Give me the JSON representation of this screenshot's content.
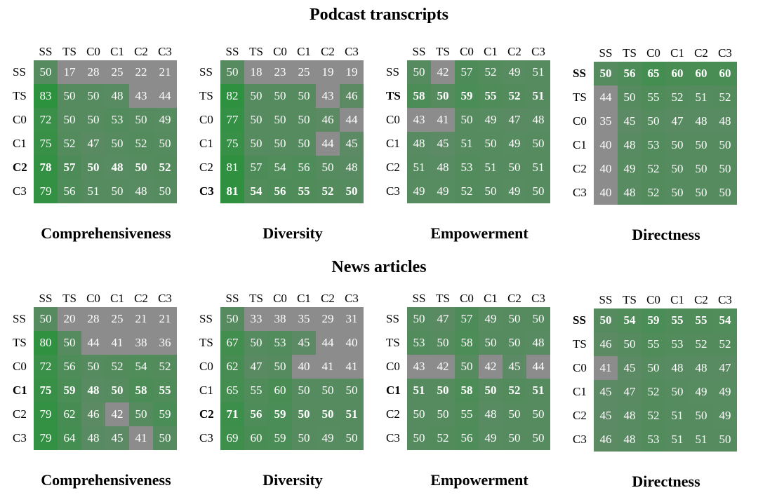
{
  "sections": [
    {
      "title": "Podcast transcripts"
    },
    {
      "title": "News articles"
    }
  ],
  "colors": {
    "gray": "#8c8c8c",
    "green_mid": "#4f8a5c",
    "green_strong": "#2e8a3e",
    "text": "#ffffff"
  },
  "chart_data": [
    {
      "type": "heatmap",
      "section": "Podcast transcripts",
      "title": "Comprehensiveness",
      "x_categories": [
        "SS",
        "TS",
        "C0",
        "C1",
        "C2",
        "C3"
      ],
      "y_categories": [
        "SS",
        "TS",
        "C0",
        "C1",
        "C2",
        "C3"
      ],
      "highlight_row": "C2",
      "values": [
        [
          50,
          17,
          28,
          25,
          22,
          21
        ],
        [
          83,
          50,
          50,
          48,
          43,
          44
        ],
        [
          72,
          50,
          50,
          53,
          50,
          49
        ],
        [
          75,
          52,
          47,
          50,
          52,
          50
        ],
        [
          78,
          57,
          50,
          48,
          50,
          52
        ],
        [
          79,
          56,
          51,
          50,
          48,
          50
        ]
      ]
    },
    {
      "type": "heatmap",
      "section": "Podcast transcripts",
      "title": "Diversity",
      "x_categories": [
        "SS",
        "TS",
        "C0",
        "C1",
        "C2",
        "C3"
      ],
      "y_categories": [
        "SS",
        "TS",
        "C0",
        "C1",
        "C2",
        "C3"
      ],
      "highlight_row": "C3",
      "values": [
        [
          50,
          18,
          23,
          25,
          19,
          19
        ],
        [
          82,
          50,
          50,
          50,
          43,
          46
        ],
        [
          77,
          50,
          50,
          50,
          46,
          44
        ],
        [
          75,
          50,
          50,
          50,
          44,
          45
        ],
        [
          81,
          57,
          54,
          56,
          50,
          48
        ],
        [
          81,
          54,
          56,
          55,
          52,
          50
        ]
      ]
    },
    {
      "type": "heatmap",
      "section": "Podcast transcripts",
      "title": "Empowerment",
      "x_categories": [
        "SS",
        "TS",
        "C0",
        "C1",
        "C2",
        "C3"
      ],
      "y_categories": [
        "SS",
        "TS",
        "C0",
        "C1",
        "C2",
        "C3"
      ],
      "highlight_row": "TS",
      "values": [
        [
          50,
          42,
          57,
          52,
          49,
          51
        ],
        [
          58,
          50,
          59,
          55,
          52,
          51
        ],
        [
          43,
          41,
          50,
          49,
          47,
          48
        ],
        [
          48,
          45,
          51,
          50,
          49,
          50
        ],
        [
          51,
          48,
          53,
          51,
          50,
          51
        ],
        [
          49,
          49,
          52,
          50,
          49,
          50
        ]
      ]
    },
    {
      "type": "heatmap",
      "section": "Podcast transcripts",
      "title": "Directness",
      "x_categories": [
        "SS",
        "TS",
        "C0",
        "C1",
        "C2",
        "C3"
      ],
      "y_categories": [
        "SS",
        "TS",
        "C0",
        "C1",
        "C2",
        "C3"
      ],
      "highlight_row": "SS",
      "values": [
        [
          50,
          56,
          65,
          60,
          60,
          60
        ],
        [
          44,
          50,
          55,
          52,
          51,
          52
        ],
        [
          35,
          45,
          50,
          47,
          48,
          48
        ],
        [
          40,
          48,
          53,
          50,
          50,
          50
        ],
        [
          40,
          49,
          52,
          50,
          50,
          50
        ],
        [
          40,
          48,
          52,
          50,
          50,
          50
        ]
      ]
    },
    {
      "type": "heatmap",
      "section": "News articles",
      "title": "Comprehensiveness",
      "x_categories": [
        "SS",
        "TS",
        "C0",
        "C1",
        "C2",
        "C3"
      ],
      "y_categories": [
        "SS",
        "TS",
        "C0",
        "C1",
        "C2",
        "C3"
      ],
      "highlight_row": "C1",
      "values": [
        [
          50,
          20,
          28,
          25,
          21,
          21
        ],
        [
          80,
          50,
          44,
          41,
          38,
          36
        ],
        [
          72,
          56,
          50,
          52,
          54,
          52
        ],
        [
          75,
          59,
          48,
          50,
          58,
          55
        ],
        [
          79,
          62,
          46,
          42,
          50,
          59
        ],
        [
          79,
          64,
          48,
          45,
          41,
          50
        ]
      ]
    },
    {
      "type": "heatmap",
      "section": "News articles",
      "title": "Diversity",
      "x_categories": [
        "SS",
        "TS",
        "C0",
        "C1",
        "C2",
        "C3"
      ],
      "y_categories": [
        "SS",
        "TS",
        "C0",
        "C1",
        "C2",
        "C3"
      ],
      "highlight_row": "C2",
      "values": [
        [
          50,
          33,
          38,
          35,
          29,
          31
        ],
        [
          67,
          50,
          53,
          45,
          44,
          40
        ],
        [
          62,
          47,
          50,
          40,
          41,
          41
        ],
        [
          65,
          55,
          60,
          50,
          50,
          50
        ],
        [
          71,
          56,
          59,
          50,
          50,
          51
        ],
        [
          69,
          60,
          59,
          50,
          49,
          50
        ]
      ]
    },
    {
      "type": "heatmap",
      "section": "News articles",
      "title": "Empowerment",
      "x_categories": [
        "SS",
        "TS",
        "C0",
        "C1",
        "C2",
        "C3"
      ],
      "y_categories": [
        "SS",
        "TS",
        "C0",
        "C1",
        "C2",
        "C3"
      ],
      "highlight_row": "C1",
      "values": [
        [
          50,
          47,
          57,
          49,
          50,
          50
        ],
        [
          53,
          50,
          58,
          50,
          50,
          48
        ],
        [
          43,
          42,
          50,
          42,
          45,
          44
        ],
        [
          51,
          50,
          58,
          50,
          52,
          51
        ],
        [
          50,
          50,
          55,
          48,
          50,
          50
        ],
        [
          50,
          52,
          56,
          49,
          50,
          50
        ]
      ]
    },
    {
      "type": "heatmap",
      "section": "News articles",
      "title": "Directness",
      "x_categories": [
        "SS",
        "TS",
        "C0",
        "C1",
        "C2",
        "C3"
      ],
      "y_categories": [
        "SS",
        "TS",
        "C0",
        "C1",
        "C2",
        "C3"
      ],
      "highlight_row": "SS",
      "values": [
        [
          50,
          54,
          59,
          55,
          55,
          54
        ],
        [
          46,
          50,
          55,
          53,
          52,
          52
        ],
        [
          41,
          45,
          50,
          48,
          48,
          47
        ],
        [
          45,
          47,
          52,
          50,
          49,
          49
        ],
        [
          45,
          48,
          52,
          51,
          50,
          49
        ],
        [
          46,
          48,
          53,
          51,
          51,
          50
        ]
      ]
    }
  ]
}
